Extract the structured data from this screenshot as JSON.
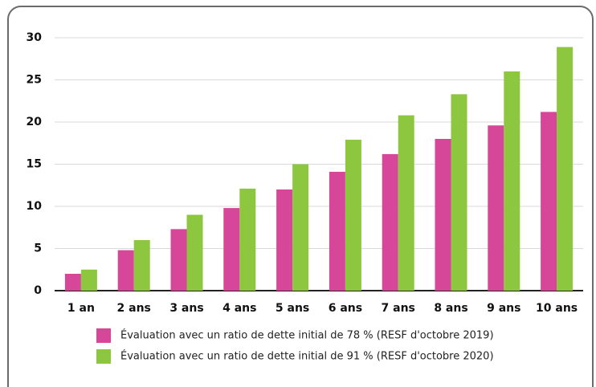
{
  "chart_data": {
    "type": "bar",
    "categories": [
      "1 an",
      "2 ans",
      "3 ans",
      "4 ans",
      "5 ans",
      "6 ans",
      "7 ans",
      "8 ans",
      "9 ans",
      "10 ans"
    ],
    "series": [
      {
        "name": "Évaluation avec un ratio de dette initial de 78 % (RESF d'octobre 2019)",
        "color": "#d6479a",
        "values": [
          2.0,
          4.8,
          7.3,
          9.8,
          12.0,
          14.1,
          16.2,
          18.0,
          19.6,
          21.2
        ]
      },
      {
        "name": "Évaluation  avec un ratio de dette initial de 91 % (RESF d'octobre 2020)",
        "color": "#8dc63f",
        "values": [
          2.5,
          6.0,
          9.0,
          12.1,
          15.0,
          17.9,
          20.8,
          23.3,
          26.0,
          28.9
        ]
      }
    ],
    "ylim": [
      0,
      30
    ],
    "yticks": [
      0,
      5,
      10,
      15,
      20,
      25,
      30
    ],
    "grid": true
  }
}
